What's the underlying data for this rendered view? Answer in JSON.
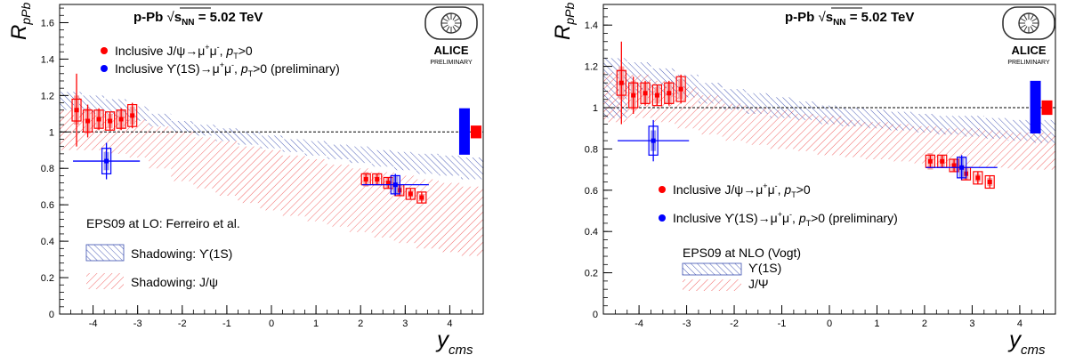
{
  "chart_data": [
    {
      "type": "scatter",
      "title": "p-Pb  √sNN = 5.02 TeV",
      "title_parts": {
        "system": "p-Pb",
        "sqrt": "√",
        "s": "s",
        "s_sub": "NN",
        "energy": "= 5.02 TeV"
      },
      "ylabel": "R",
      "ylabel_sub": "pPb",
      "xlabel": "y",
      "xlabel_sub": "cms",
      "xlim": [
        -4.75,
        4.75
      ],
      "ylim": [
        0,
        1.7
      ],
      "x_ticks": [
        -4,
        -3,
        -2,
        -1,
        0,
        1,
        2,
        3,
        4
      ],
      "y_ticks": [
        0,
        0.2,
        0.4,
        0.6,
        0.8,
        1,
        1.2,
        1.4,
        1.6
      ],
      "y_tick_labels": [
        "0",
        "0.2",
        "0.4",
        "0.6",
        "0.8",
        "1",
        "1.2",
        "1.4",
        "1.6"
      ],
      "reference_line": 1,
      "global_uncertainty": {
        "blue": [
          0.875,
          1.13
        ],
        "red": [
          0.965,
          1.035
        ]
      },
      "logo": {
        "text": "ALICE",
        "sub": "PRELIMINARY"
      },
      "legend_series": [
        {
          "label_pre": "Inclusive J/ψ→μ",
          "sup1": "+",
          "mid": "μ",
          "sup2": "-",
          "sep": ", ",
          "pt": "p",
          "pt_sub": "T",
          "cond": ">0",
          "tail": "",
          "color": "#ff0000"
        },
        {
          "label_pre": "Inclusive ϒ(1S)→μ",
          "sup1": "+",
          "mid": "μ",
          "sup2": "-",
          "sep": ", ",
          "pt": "p",
          "pt_sub": "T",
          "cond": ">0",
          "tail": " (preliminary)",
          "color": "#0000ff"
        }
      ],
      "model": {
        "title": "EPS09 at LO: Ferreiro et al.",
        "items": [
          {
            "label": "Shadowing: ϒ(1S)",
            "color": "#3b4eb0"
          },
          {
            "label": "Shadowing: J/ψ",
            "color": "#f26b6b"
          }
        ],
        "jpsi_band": {
          "x": [
            -4.5,
            -4,
            -3.5,
            -3,
            -2.5,
            -2,
            -1.5,
            -1,
            -0.5,
            0,
            0.5,
            1,
            1.5,
            2,
            2.5,
            3,
            3.5,
            4,
            4.5
          ],
          "lo": [
            0.9,
            0.9,
            0.88,
            0.86,
            0.8,
            0.73,
            0.69,
            0.65,
            0.61,
            0.57,
            0.54,
            0.51,
            0.48,
            0.45,
            0.42,
            0.39,
            0.36,
            0.34,
            0.32
          ],
          "hi": [
            1.12,
            1.12,
            1.1,
            1.07,
            1.03,
            1,
            0.97,
            0.95,
            0.92,
            0.9,
            0.87,
            0.85,
            0.82,
            0.8,
            0.78,
            0.76,
            0.74,
            0.72,
            0.7
          ]
        },
        "upsilon_band": {
          "x": [
            -4.5,
            -4,
            -3.5,
            -3,
            -2.5,
            -2,
            -1.5,
            -1,
            -0.5,
            0,
            0.5,
            1,
            1.5,
            2,
            2.5,
            3,
            3.5,
            4,
            4.5
          ],
          "lo": [
            1.12,
            1.1,
            1.08,
            1.06,
            1.03,
            1,
            0.98,
            0.95,
            0.93,
            0.91,
            0.89,
            0.87,
            0.85,
            0.83,
            0.81,
            0.79,
            0.77,
            0.76,
            0.74
          ],
          "hi": [
            1.22,
            1.2,
            1.18,
            1.14,
            1.1,
            1.06,
            1.04,
            1.02,
            1,
            0.98,
            0.96,
            0.95,
            0.93,
            0.92,
            0.9,
            0.89,
            0.88,
            0.87,
            0.86
          ]
        }
      },
      "series": [
        {
          "name": "Inclusive J/ψ",
          "color": "#ff0000",
          "x": [
            -4.37,
            -4.12,
            -3.87,
            -3.62,
            -3.37,
            -3.12,
            2.12,
            2.37,
            2.62,
            2.87,
            3.12,
            3.37
          ],
          "y": [
            1.12,
            1.06,
            1.07,
            1.06,
            1.07,
            1.09,
            0.74,
            0.74,
            0.72,
            0.68,
            0.66,
            0.64
          ],
          "stat": [
            0.2,
            0.09,
            0.06,
            0.05,
            0.06,
            0.07,
            0.03,
            0.03,
            0.03,
            0.03,
            0.03,
            0.03
          ],
          "sys": [
            0.06,
            0.06,
            0.05,
            0.05,
            0.05,
            0.06,
            0.03,
            0.03,
            0.03,
            0.03,
            0.03,
            0.03
          ],
          "sys_corr": [
            0.08,
            0.07,
            0.05,
            0.04,
            0.05,
            0.05,
            0.04,
            0.03,
            0.03,
            0.03,
            0.02,
            0.02
          ]
        },
        {
          "name": "Inclusive ϒ(1S)",
          "color": "#0000ff",
          "x": [
            -3.7,
            2.78
          ],
          "xerr": [
            0.75,
            0.75
          ],
          "y": [
            0.84,
            0.71
          ],
          "stat": [
            0.1,
            0.06
          ],
          "sys": [
            0.07,
            0.05
          ],
          "sys_corr": [
            0.05,
            0.05
          ]
        }
      ]
    },
    {
      "type": "scatter",
      "title": "p-Pb  √sNN = 5.02 TeV",
      "title_parts": {
        "system": "p-Pb",
        "sqrt": "√",
        "s": "s",
        "s_sub": "NN",
        "energy": "= 5.02 TeV"
      },
      "ylabel": "R",
      "ylabel_sub": "pPb",
      "xlabel": "y",
      "xlabel_sub": "cms",
      "xlim": [
        -4.75,
        4.75
      ],
      "ylim": [
        0,
        1.5
      ],
      "x_ticks": [
        -4,
        -3,
        -2,
        -1,
        0,
        1,
        2,
        3,
        4
      ],
      "y_ticks": [
        0,
        0.2,
        0.4,
        0.6,
        0.8,
        1,
        1.2,
        1.4
      ],
      "y_tick_labels": [
        "0",
        "0.2",
        "0.4",
        "0.6",
        "0.8",
        "1",
        "1.2",
        "1.4"
      ],
      "reference_line": 1,
      "global_uncertainty": {
        "blue": [
          0.875,
          1.13
        ],
        "red": [
          0.965,
          1.035
        ]
      },
      "logo": {
        "text": "ALICE",
        "sub": "PRELIMINARY"
      },
      "legend_series": [
        {
          "label_pre": "Inclusive J/ψ→μ",
          "sup1": "+",
          "mid": "μ",
          "sup2": "-",
          "sep": ", ",
          "pt": "p",
          "pt_sub": "T",
          "cond": ">0",
          "tail": "",
          "color": "#ff0000"
        },
        {
          "label_pre": "Inclusive ϒ(1S)→μ",
          "sup1": "+",
          "mid": "μ",
          "sup2": "-",
          "sep": ", ",
          "pt": "p",
          "pt_sub": "T",
          "cond": ">0",
          "tail": " (preliminary)",
          "color": "#0000ff"
        }
      ],
      "model": {
        "title": "EPS09 at NLO (Vogt)",
        "items": [
          {
            "label": "ϒ(1S)",
            "color": "#3b4eb0"
          },
          {
            "label": "J/Ψ",
            "color": "#f26b6b"
          }
        ],
        "jpsi_band": {
          "x": [
            -4.5,
            -4,
            -3.5,
            -3,
            -2.5,
            -2,
            -1.5,
            -1,
            -0.5,
            0,
            0.5,
            1,
            1.5,
            2,
            2.5,
            3,
            3.5,
            4,
            4.5
          ],
          "lo": [
            0.93,
            0.95,
            0.93,
            0.9,
            0.87,
            0.84,
            0.82,
            0.8,
            0.79,
            0.77,
            0.76,
            0.75,
            0.74,
            0.73,
            0.72,
            0.71,
            0.71,
            0.7,
            0.7
          ],
          "hi": [
            1.17,
            1.16,
            1.13,
            1.1,
            1.06,
            1.02,
            1,
            0.99,
            0.97,
            0.96,
            0.94,
            0.93,
            0.92,
            0.91,
            0.9,
            0.9,
            0.89,
            0.88,
            0.88
          ]
        },
        "upsilon_band": {
          "x": [
            -4.5,
            -4,
            -3.5,
            -3,
            -2.5,
            -2,
            -1.5,
            -1,
            -0.5,
            0,
            0.5,
            1,
            1.5,
            2,
            2.5,
            3,
            3.5,
            4,
            4.5
          ],
          "lo": [
            0.95,
            1.07,
            1.06,
            1.05,
            1.02,
            0.99,
            0.97,
            0.95,
            0.94,
            0.92,
            0.91,
            0.9,
            0.89,
            0.88,
            0.87,
            0.86,
            0.85,
            0.84,
            0.83
          ],
          "hi": [
            1.24,
            1.22,
            1.19,
            1.16,
            1.12,
            1.09,
            1.07,
            1.05,
            1.03,
            1.01,
            1,
            0.99,
            0.98,
            0.97,
            0.96,
            0.96,
            0.95,
            0.94,
            0.94
          ]
        }
      },
      "series": [
        {
          "name": "Inclusive J/ψ",
          "color": "#ff0000",
          "x": [
            -4.37,
            -4.12,
            -3.87,
            -3.62,
            -3.37,
            -3.12,
            2.12,
            2.37,
            2.62,
            2.87,
            3.12,
            3.37
          ],
          "y": [
            1.12,
            1.06,
            1.07,
            1.06,
            1.07,
            1.09,
            0.74,
            0.74,
            0.72,
            0.68,
            0.66,
            0.64
          ],
          "stat": [
            0.2,
            0.09,
            0.06,
            0.05,
            0.06,
            0.07,
            0.03,
            0.03,
            0.03,
            0.03,
            0.03,
            0.03
          ],
          "sys": [
            0.06,
            0.06,
            0.05,
            0.05,
            0.05,
            0.06,
            0.03,
            0.03,
            0.03,
            0.03,
            0.03,
            0.03
          ],
          "sys_corr": [
            0.08,
            0.07,
            0.05,
            0.04,
            0.05,
            0.05,
            0.04,
            0.03,
            0.03,
            0.03,
            0.02,
            0.02
          ]
        },
        {
          "name": "Inclusive ϒ(1S)",
          "color": "#0000ff",
          "x": [
            -3.7,
            2.78
          ],
          "xerr": [
            0.75,
            0.75
          ],
          "y": [
            0.84,
            0.71
          ],
          "stat": [
            0.1,
            0.06
          ],
          "sys": [
            0.07,
            0.05
          ],
          "sys_corr": [
            0.05,
            0.05
          ]
        }
      ]
    }
  ]
}
